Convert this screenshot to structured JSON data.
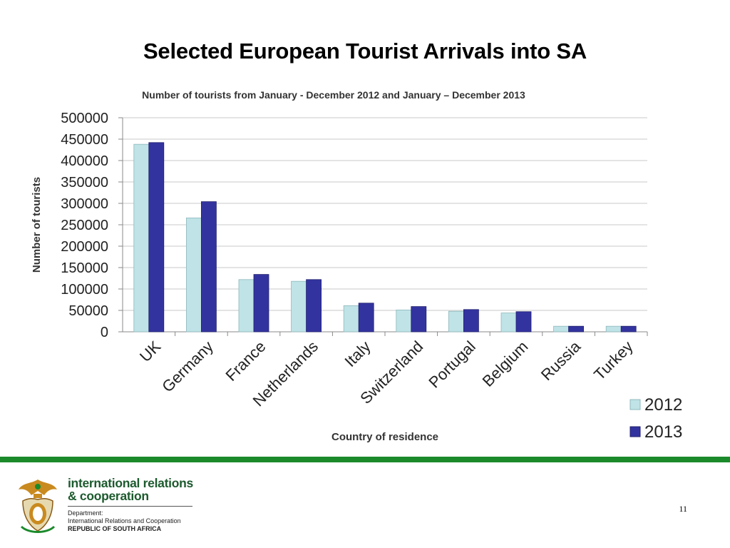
{
  "slide": {
    "title": "Selected European Tourist Arrivals into SA",
    "page_number": "11"
  },
  "footer": {
    "dept_line1": "international relations",
    "dept_line2": "& cooperation",
    "dept_label": "Department:",
    "dept_full": "International Relations and Cooperation",
    "country": "REPUBLIC OF SOUTH AFRICA",
    "rule_color": "#1b8a2b",
    "text_color": "#1d5a2e"
  },
  "chart_data": {
    "type": "bar",
    "title": "Number of tourists from January - December 2012 and January – December 2013",
    "xlabel": "Country of residence",
    "ylabel": "Number of tourists",
    "categories": [
      "UK",
      "Germany",
      "France",
      "Netherlands",
      "Italy",
      "Switzerland",
      "Portugal",
      "Belgium",
      "Russia",
      "Turkey"
    ],
    "series": [
      {
        "name": "2012",
        "color": "#bfe3e6",
        "values": [
          438000,
          266000,
          122000,
          118000,
          61000,
          51000,
          48000,
          44000,
          13000,
          13000
        ]
      },
      {
        "name": "2013",
        "color": "#3333a0",
        "values": [
          442000,
          304000,
          134000,
          122000,
          67000,
          59000,
          52000,
          47000,
          13000,
          13000
        ]
      }
    ],
    "ylim": [
      0,
      500000
    ],
    "yticks": [
      "0",
      "50000",
      "100000",
      "150000",
      "200000",
      "250000",
      "300000",
      "350000",
      "400000",
      "450000",
      "500000"
    ],
    "grid": true,
    "legend_position": "bottom-right"
  }
}
